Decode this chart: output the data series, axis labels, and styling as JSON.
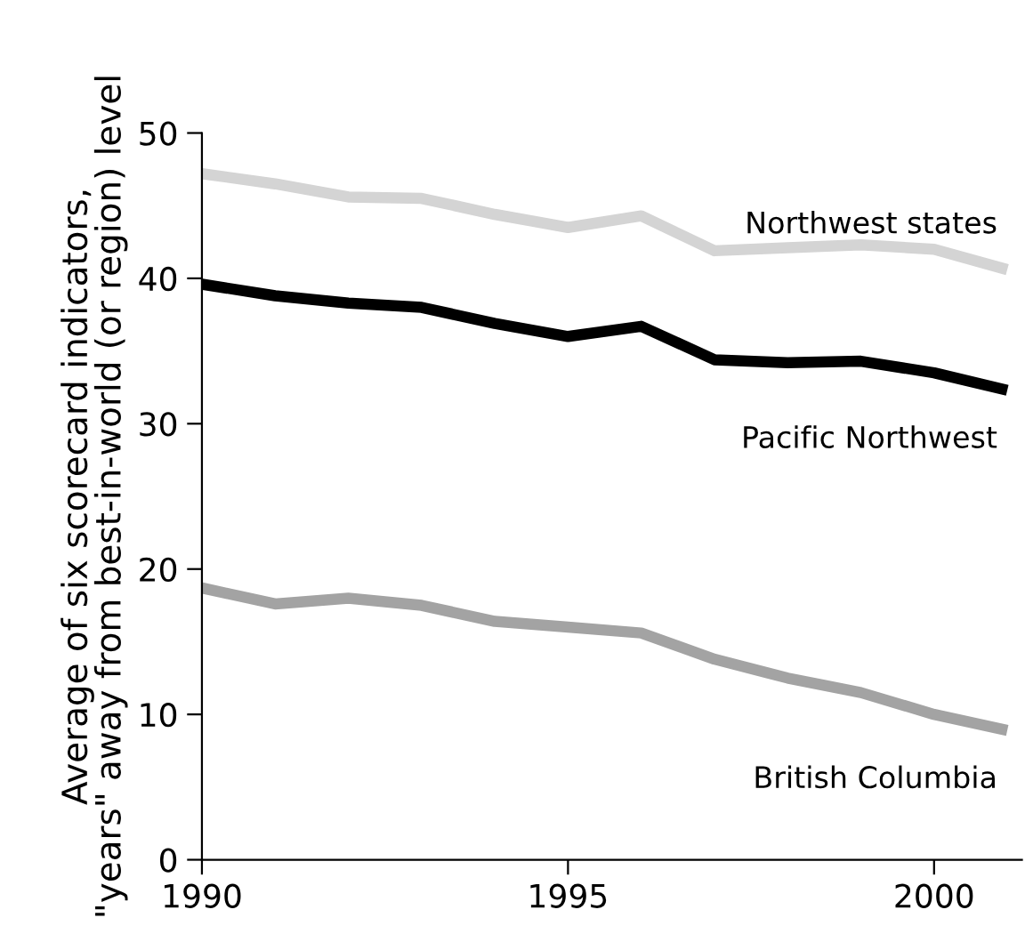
{
  "chart_data": {
    "type": "line",
    "ylabel": "Average of six scorecard indicators,\n\"years\" away from best-in-world (or region) level",
    "x": [
      1990,
      1991,
      1992,
      1993,
      1994,
      1995,
      1996,
      1997,
      1998,
      1999,
      2000,
      2001
    ],
    "series": [
      {
        "name": "Northwest states",
        "color": "#d4d4d4",
        "values": [
          47.2,
          46.5,
          45.6,
          45.5,
          44.4,
          43.5,
          44.3,
          41.9,
          42.1,
          42.3,
          42.0,
          40.6
        ]
      },
      {
        "name": "Pacific Northwest",
        "color": "#000000",
        "values": [
          39.6,
          38.8,
          38.3,
          38.0,
          36.9,
          36.0,
          36.7,
          34.4,
          34.2,
          34.3,
          33.5,
          32.3
        ]
      },
      {
        "name": "British Columbia",
        "color": "#a3a3a3",
        "values": [
          18.7,
          17.6,
          18.0,
          17.5,
          16.4,
          16.0,
          15.6,
          13.8,
          12.5,
          11.5,
          10.0,
          8.9
        ]
      }
    ],
    "xlim": [
      1990,
      2001.2
    ],
    "ylim": [
      0,
      50
    ],
    "xticks": [
      1990,
      1995,
      2000
    ],
    "yticks": [
      0,
      10,
      20,
      30,
      40,
      50
    ],
    "grid": false,
    "legend": false,
    "marker": "none",
    "line_style": "solid"
  }
}
